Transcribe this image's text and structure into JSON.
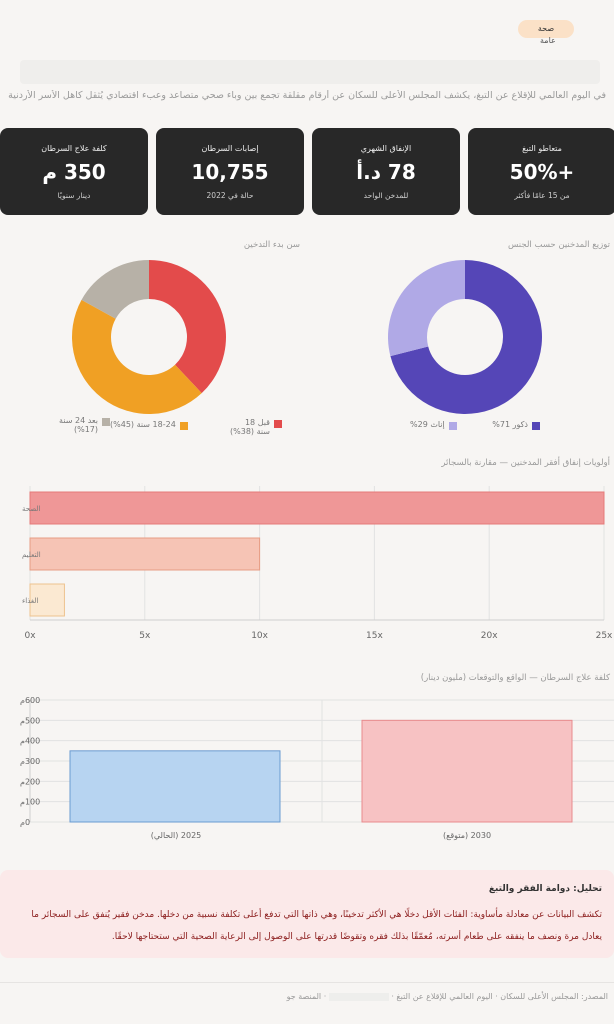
{
  "header": {
    "badge_line1": "صحة",
    "badge_line2": "عامة",
    "intro": "في اليوم العالمي للإقلاع عن التبغ، يكشف المجلس الأعلى للسكان عن أرقام مقلقة تجمع بين وباء صحي متصاعد وعبء اقتصادي يُثقل كاهل الأسر الأردنية."
  },
  "cards": [
    {
      "label": "متعاطو التبغ",
      "value": "+50%",
      "sub": "من 15 عامًا فأكثر"
    },
    {
      "label": "الإنفاق الشهري",
      "value": "78 د.أ",
      "sub": "للمدخن الواحد"
    },
    {
      "label": "إصابات السرطان",
      "value": "10,755",
      "sub": "حالة في 2022"
    },
    {
      "label": "كلفة علاج السرطان",
      "value": "350 م",
      "sub": "دينار سنويًا"
    }
  ],
  "colors": {
    "male": "#5546b7",
    "female": "#b0a9e6",
    "under18": "#e34b4b",
    "age18_24": "#f0a024",
    "over24": "#b7b1a7"
  },
  "chart_data": [
    {
      "type": "pie",
      "title": "توزيع المدخنين حسب الجنس",
      "categories": [
        "ذكور",
        "إناث"
      ],
      "values": [
        71,
        29
      ],
      "legend": [
        "ذكور 71%",
        "إناث 29%"
      ]
    },
    {
      "type": "pie",
      "title": "سن بدء التدخين",
      "categories": [
        "قبل 18 سنة",
        "18-24 سنة",
        "بعد 24 سنة"
      ],
      "values": [
        38,
        45,
        17
      ],
      "legend": [
        "قبل 18 سنة (38%)",
        "18-24 سنة (45%)",
        "بعد 24 سنة (17%)"
      ]
    },
    {
      "type": "bar",
      "title": "أولويات إنفاق أفقر المدخنين — مقارنة بالسجائر",
      "categories": [
        "الصحة",
        "التعليم",
        "الغذاء"
      ],
      "values": [
        25,
        10,
        1.5
      ],
      "xlim": [
        0,
        25
      ],
      "ticks": [
        "0x",
        "5x",
        "10x",
        "15x",
        "20x",
        "25x"
      ],
      "tick_values": [
        0,
        5,
        10,
        15,
        20,
        25
      ],
      "colors": [
        "#ef9797",
        "#f6c4b5",
        "#fbe9d2"
      ],
      "borders": [
        "#e57a7a",
        "#e79d84",
        "#eec38f"
      ]
    },
    {
      "type": "bar",
      "title": "كلفة علاج السرطان — الواقع والتوقعات (مليون دينار)",
      "categories": [
        "2025 (الحالي)",
        "2030 (متوقع)"
      ],
      "values": [
        350,
        500
      ],
      "ylim": [
        0,
        600
      ],
      "ticks": [
        "0م",
        "100م",
        "200م",
        "300م",
        "400م",
        "500م",
        "600م"
      ],
      "tick_values": [
        0,
        100,
        200,
        300,
        400,
        500,
        600
      ],
      "colors": [
        "#b7d4f1",
        "#f7c2c3"
      ],
      "borders": [
        "#6a9bd1",
        "#e88a8e"
      ]
    }
  ],
  "analysis": {
    "heading": "تحليل: دوامة الفقر والتبغ",
    "body": "تكشف البيانات عن معادلة مأساوية: الفئات الأقل دخلًا هي الأكثر تدخينًا، وهي ذاتها التي تدفع أعلى تكلفة نسبية من دخلها. مدخن فقير يُنفق على السجائر ما يعادل مرة ونصف ما ينفقه على طعام أسرته، مُعمّقًا بذلك فقره وتقوضًا قدرتها على الوصول إلى الرعاية الصحية التي ستحتاجها لاحقًا."
  },
  "footer": {
    "source": "المصدر: المجلس الأعلى للسكان · اليوم العالمي للإقلاع عن التبغ · ",
    "platform": "· المنصة جو"
  }
}
